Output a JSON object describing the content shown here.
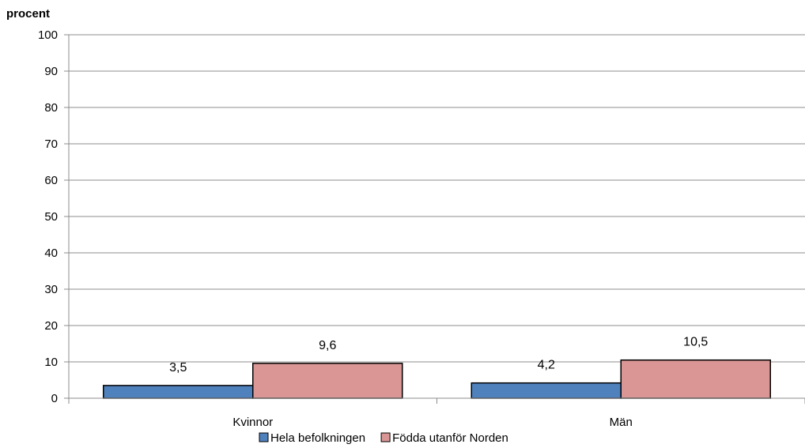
{
  "chart_data": {
    "type": "bar",
    "ylabel": "procent",
    "ylim": [
      0,
      100
    ],
    "yticks": [
      0,
      10,
      20,
      30,
      40,
      50,
      60,
      70,
      80,
      90,
      100
    ],
    "grid": true,
    "legend_position": "bottom",
    "categories": [
      "Kvinnor",
      "Män"
    ],
    "series": [
      {
        "name": "Hela befolkningen",
        "values": [
          3.5,
          4.2
        ],
        "labels": [
          "3,5",
          "4,2"
        ],
        "color": "#4f81bd"
      },
      {
        "name": "Födda utanför Norden",
        "values": [
          9.6,
          10.5
        ],
        "labels": [
          "9,6",
          "10,5"
        ],
        "color": "#d99694"
      }
    ]
  }
}
